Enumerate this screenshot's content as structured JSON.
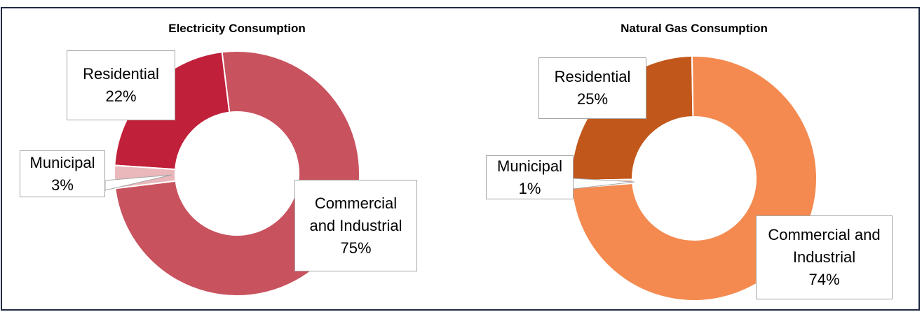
{
  "chart_data": [
    {
      "type": "donut",
      "title": "Electricity Consumption",
      "categories": [
        "Commercial and Industrial",
        "Municipal",
        "Residential"
      ],
      "values": [
        75,
        3,
        22
      ],
      "value_labels": [
        "75%",
        "3%",
        "22%"
      ],
      "colors": [
        "#c9525f",
        "#eab7bb",
        "#c0203a"
      ]
    },
    {
      "type": "donut",
      "title": "Natural Gas Consumption",
      "categories": [
        "Commercial and Industrial",
        "Municipal",
        "Residential"
      ],
      "values": [
        74,
        1,
        25
      ],
      "value_labels": [
        "74%",
        "1%",
        "25%"
      ],
      "colors": [
        "#f48a50",
        "#f7c2aa",
        "#c1571a"
      ]
    }
  ]
}
